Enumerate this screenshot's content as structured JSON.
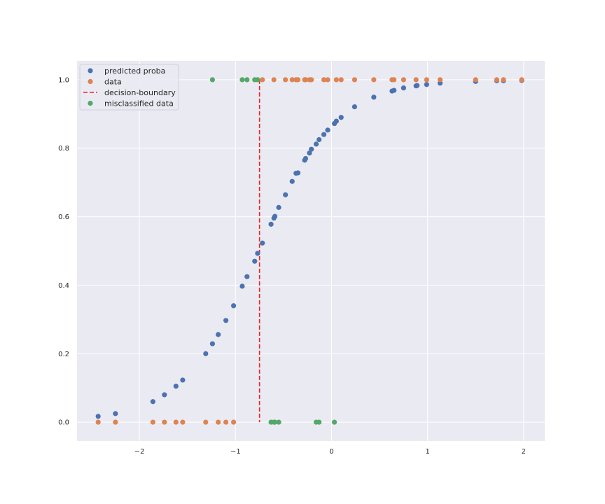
{
  "chart_data": {
    "type": "scatter",
    "title": "",
    "xlabel": "",
    "ylabel": "",
    "xlim": [
      -2.65,
      2.22
    ],
    "ylim": [
      -0.055,
      1.055
    ],
    "xticks": [
      -2,
      -1,
      0,
      1,
      2
    ],
    "xtick_labels": [
      "−2",
      "−1",
      "0",
      "1",
      "2"
    ],
    "yticks": [
      0.0,
      0.2,
      0.4,
      0.6,
      0.8,
      1.0
    ],
    "ytick_labels": [
      "0.0",
      "0.2",
      "0.4",
      "0.6",
      "0.8",
      "1.0"
    ],
    "grid": true,
    "legend_position": "upper-left",
    "colors": {
      "background": "#eaeaf2",
      "grid": "#ffffff",
      "predicted": "#4c72b0",
      "data": "#dd8452",
      "boundary": "#e8272b",
      "misclassified": "#55a868"
    },
    "legend": [
      {
        "label": "predicted proba",
        "kind": "marker",
        "color": "#4c72b0"
      },
      {
        "label": "data",
        "kind": "marker",
        "color": "#dd8452"
      },
      {
        "label": "decision-boundary",
        "kind": "dashed-line",
        "color": "#e8272b"
      },
      {
        "label": "misclassified data",
        "kind": "marker",
        "color": "#55a868"
      }
    ],
    "decision_boundary": {
      "x": -0.75,
      "y_range": [
        0.0,
        1.0
      ]
    },
    "series": [
      {
        "name": "predicted proba",
        "color": "#4c72b0",
        "points": [
          [
            -2.43,
            0.017
          ],
          [
            -2.25,
            0.025
          ],
          [
            -1.86,
            0.06
          ],
          [
            -1.74,
            0.08
          ],
          [
            -1.62,
            0.105
          ],
          [
            -1.55,
            0.123
          ],
          [
            -1.31,
            0.2
          ],
          [
            -1.24,
            0.229
          ],
          [
            -1.18,
            0.256
          ],
          [
            -1.1,
            0.297
          ],
          [
            -1.02,
            0.34
          ],
          [
            -0.93,
            0.397
          ],
          [
            -0.88,
            0.425
          ],
          [
            -0.8,
            0.47
          ],
          [
            -0.77,
            0.493
          ],
          [
            -0.72,
            0.523
          ],
          [
            -0.63,
            0.578
          ],
          [
            -0.6,
            0.596
          ],
          [
            -0.59,
            0.601
          ],
          [
            -0.55,
            0.627
          ],
          [
            -0.48,
            0.664
          ],
          [
            -0.41,
            0.703
          ],
          [
            -0.37,
            0.727
          ],
          [
            -0.35,
            0.728
          ],
          [
            -0.28,
            0.765
          ],
          [
            -0.27,
            0.77
          ],
          [
            -0.23,
            0.786
          ],
          [
            -0.21,
            0.797
          ],
          [
            -0.16,
            0.812
          ],
          [
            -0.13,
            0.825
          ],
          [
            -0.08,
            0.84
          ],
          [
            -0.04,
            0.853
          ],
          [
            0.03,
            0.872
          ],
          [
            0.05,
            0.879
          ],
          [
            0.1,
            0.89
          ],
          [
            0.24,
            0.921
          ],
          [
            0.44,
            0.949
          ],
          [
            0.63,
            0.967
          ],
          [
            0.65,
            0.969
          ],
          [
            0.75,
            0.976
          ],
          [
            0.88,
            0.982
          ],
          [
            0.89,
            0.983
          ],
          [
            0.99,
            0.986
          ],
          [
            1.13,
            0.99
          ],
          [
            1.5,
            0.995
          ],
          [
            1.72,
            0.997
          ],
          [
            1.79,
            0.997
          ],
          [
            1.98,
            0.998
          ]
        ]
      },
      {
        "name": "data",
        "color": "#dd8452",
        "points": [
          [
            -2.43,
            0
          ],
          [
            -2.25,
            0
          ],
          [
            -1.86,
            0
          ],
          [
            -1.74,
            0
          ],
          [
            -1.62,
            0
          ],
          [
            -1.55,
            0
          ],
          [
            -1.31,
            0
          ],
          [
            -1.18,
            0
          ],
          [
            -1.1,
            0
          ],
          [
            -1.02,
            0
          ],
          [
            -0.72,
            1
          ],
          [
            -0.6,
            1
          ],
          [
            -0.48,
            1
          ],
          [
            -0.41,
            1
          ],
          [
            -0.37,
            1
          ],
          [
            -0.35,
            1
          ],
          [
            -0.28,
            1
          ],
          [
            -0.27,
            1
          ],
          [
            -0.23,
            1
          ],
          [
            -0.21,
            1
          ],
          [
            -0.08,
            1
          ],
          [
            -0.04,
            1
          ],
          [
            0.05,
            1
          ],
          [
            0.1,
            1
          ],
          [
            0.24,
            1
          ],
          [
            0.44,
            1
          ],
          [
            0.63,
            1
          ],
          [
            0.65,
            1
          ],
          [
            0.75,
            1
          ],
          [
            0.88,
            1
          ],
          [
            0.99,
            1
          ],
          [
            1.13,
            1
          ],
          [
            1.5,
            1
          ],
          [
            1.72,
            1
          ],
          [
            1.79,
            1
          ],
          [
            1.98,
            1
          ]
        ]
      },
      {
        "name": "misclassified data",
        "color": "#55a868",
        "points": [
          [
            -1.24,
            1
          ],
          [
            -0.93,
            1
          ],
          [
            -0.88,
            1
          ],
          [
            -0.8,
            1
          ],
          [
            -0.77,
            1
          ],
          [
            -0.63,
            0
          ],
          [
            -0.6,
            0
          ],
          [
            -0.59,
            0
          ],
          [
            -0.55,
            0
          ],
          [
            -0.16,
            0
          ],
          [
            -0.13,
            0
          ],
          [
            0.03,
            0
          ]
        ]
      }
    ]
  }
}
